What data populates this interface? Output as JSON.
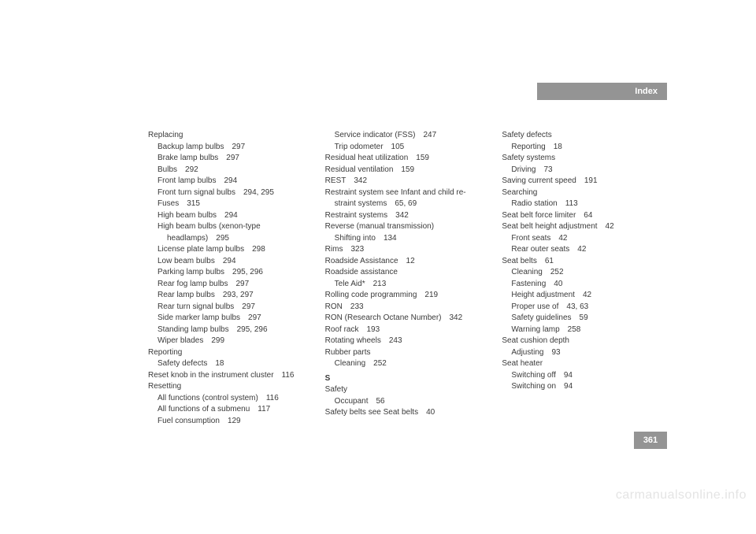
{
  "header": {
    "title": "Index"
  },
  "page_number": "361",
  "watermark": "carmanualsonline.info",
  "colors": {
    "bar_bg": "#949494",
    "bar_text": "#ffffff",
    "body_text": "#3a3a3a",
    "watermark": "#e4e4e4",
    "page_bg": "#ffffff"
  },
  "typography": {
    "body_fontsize": 10,
    "header_fontsize": 11,
    "line_height": 1.45
  },
  "columns": [
    [
      {
        "level": 0,
        "label": "Replacing",
        "page": ""
      },
      {
        "level": 1,
        "label": "Backup lamp bulbs",
        "page": "297"
      },
      {
        "level": 1,
        "label": "Brake lamp bulbs",
        "page": "297"
      },
      {
        "level": 1,
        "label": "Bulbs",
        "page": "292"
      },
      {
        "level": 1,
        "label": "Front lamp bulbs",
        "page": "294"
      },
      {
        "level": 1,
        "label": "Front turn signal bulbs",
        "page": "294, 295"
      },
      {
        "level": 1,
        "label": "Fuses",
        "page": "315"
      },
      {
        "level": 1,
        "label": "High beam bulbs",
        "page": "294"
      },
      {
        "level": 1,
        "label": "High beam bulbs (xenon-type",
        "page": ""
      },
      {
        "level": 2,
        "label": "headlamps)",
        "page": "295"
      },
      {
        "level": 1,
        "label": "License plate lamp bulbs",
        "page": "298"
      },
      {
        "level": 1,
        "label": "Low beam bulbs",
        "page": "294"
      },
      {
        "level": 1,
        "label": "Parking lamp bulbs",
        "page": "295, 296"
      },
      {
        "level": 1,
        "label": "Rear fog lamp bulbs",
        "page": "297"
      },
      {
        "level": 1,
        "label": "Rear lamp bulbs",
        "page": "293, 297"
      },
      {
        "level": 1,
        "label": "Rear turn signal bulbs",
        "page": "297"
      },
      {
        "level": 1,
        "label": "Side marker lamp bulbs",
        "page": "297"
      },
      {
        "level": 1,
        "label": "Standing lamp bulbs",
        "page": "295, 296"
      },
      {
        "level": 1,
        "label": "Wiper blades",
        "page": "299"
      },
      {
        "level": 0,
        "label": "Reporting",
        "page": ""
      },
      {
        "level": 1,
        "label": "Safety defects",
        "page": "18"
      },
      {
        "level": 0,
        "label": "Reset knob in the instrument cluster",
        "page": "116"
      },
      {
        "level": 0,
        "label": "Resetting",
        "page": ""
      },
      {
        "level": 1,
        "label": "All functions (control system)",
        "page": "116"
      },
      {
        "level": 1,
        "label": "All functions of a submenu",
        "page": "117"
      },
      {
        "level": 1,
        "label": "Fuel consumption",
        "page": "129"
      }
    ],
    [
      {
        "level": 1,
        "label": "Service indicator (FSS)",
        "page": "247"
      },
      {
        "level": 1,
        "label": "Trip odometer",
        "page": "105"
      },
      {
        "level": 0,
        "label": "Residual heat utilization",
        "page": "159"
      },
      {
        "level": 0,
        "label": "Residual ventilation",
        "page": "159"
      },
      {
        "level": 0,
        "label": "REST",
        "page": "342"
      },
      {
        "level": 0,
        "label": "Restraint system see Infant and child re-",
        "page": ""
      },
      {
        "level": 1,
        "label": "straint systems",
        "page": "65, 69"
      },
      {
        "level": 0,
        "label": "Restraint systems",
        "page": "342"
      },
      {
        "level": 0,
        "label": "Reverse (manual transmission)",
        "page": ""
      },
      {
        "level": 1,
        "label": "Shifting into",
        "page": "134"
      },
      {
        "level": 0,
        "label": "Rims",
        "page": "323"
      },
      {
        "level": 0,
        "label": "Roadside Assistance",
        "page": "12"
      },
      {
        "level": 0,
        "label": "Roadside assistance",
        "page": ""
      },
      {
        "level": 1,
        "label": "Tele Aid*",
        "page": "213"
      },
      {
        "level": 0,
        "label": "Rolling code programming",
        "page": "219"
      },
      {
        "level": 0,
        "label": "RON",
        "page": "233"
      },
      {
        "level": 0,
        "label": "RON (Research Octane Number)",
        "page": "342"
      },
      {
        "level": 0,
        "label": "Roof rack",
        "page": "193"
      },
      {
        "level": 0,
        "label": "Rotating wheels",
        "page": "243"
      },
      {
        "level": 0,
        "label": "Rubber parts",
        "page": ""
      },
      {
        "level": 1,
        "label": "Cleaning",
        "page": "252"
      },
      {
        "level": 0,
        "label": "S",
        "page": "",
        "section": true
      },
      {
        "level": 0,
        "label": "Safety",
        "page": ""
      },
      {
        "level": 1,
        "label": "Occupant",
        "page": "56"
      },
      {
        "level": 0,
        "label": "Safety belts see Seat belts",
        "page": "40"
      }
    ],
    [
      {
        "level": 0,
        "label": "Safety defects",
        "page": ""
      },
      {
        "level": 1,
        "label": "Reporting",
        "page": "18"
      },
      {
        "level": 0,
        "label": "Safety systems",
        "page": ""
      },
      {
        "level": 1,
        "label": "Driving",
        "page": "73"
      },
      {
        "level": 0,
        "label": "Saving current speed",
        "page": "191"
      },
      {
        "level": 0,
        "label": "Searching",
        "page": ""
      },
      {
        "level": 1,
        "label": "Radio station",
        "page": "113"
      },
      {
        "level": 0,
        "label": "Seat belt force limiter",
        "page": "64"
      },
      {
        "level": 0,
        "label": "Seat belt height adjustment",
        "page": "42"
      },
      {
        "level": 1,
        "label": "Front seats",
        "page": "42"
      },
      {
        "level": 1,
        "label": "Rear outer seats",
        "page": "42"
      },
      {
        "level": 0,
        "label": "Seat belts",
        "page": "61"
      },
      {
        "level": 1,
        "label": "Cleaning",
        "page": "252"
      },
      {
        "level": 1,
        "label": "Fastening",
        "page": "40"
      },
      {
        "level": 1,
        "label": "Height adjustment",
        "page": "42"
      },
      {
        "level": 1,
        "label": "Proper use of",
        "page": "43, 63"
      },
      {
        "level": 1,
        "label": "Safety guidelines",
        "page": "59"
      },
      {
        "level": 1,
        "label": "Warning lamp",
        "page": "258"
      },
      {
        "level": 0,
        "label": "Seat cushion depth",
        "page": ""
      },
      {
        "level": 1,
        "label": "Adjusting",
        "page": "93"
      },
      {
        "level": 0,
        "label": "Seat heater",
        "page": ""
      },
      {
        "level": 1,
        "label": "Switching off",
        "page": "94"
      },
      {
        "level": 1,
        "label": "Switching on",
        "page": "94"
      }
    ]
  ]
}
